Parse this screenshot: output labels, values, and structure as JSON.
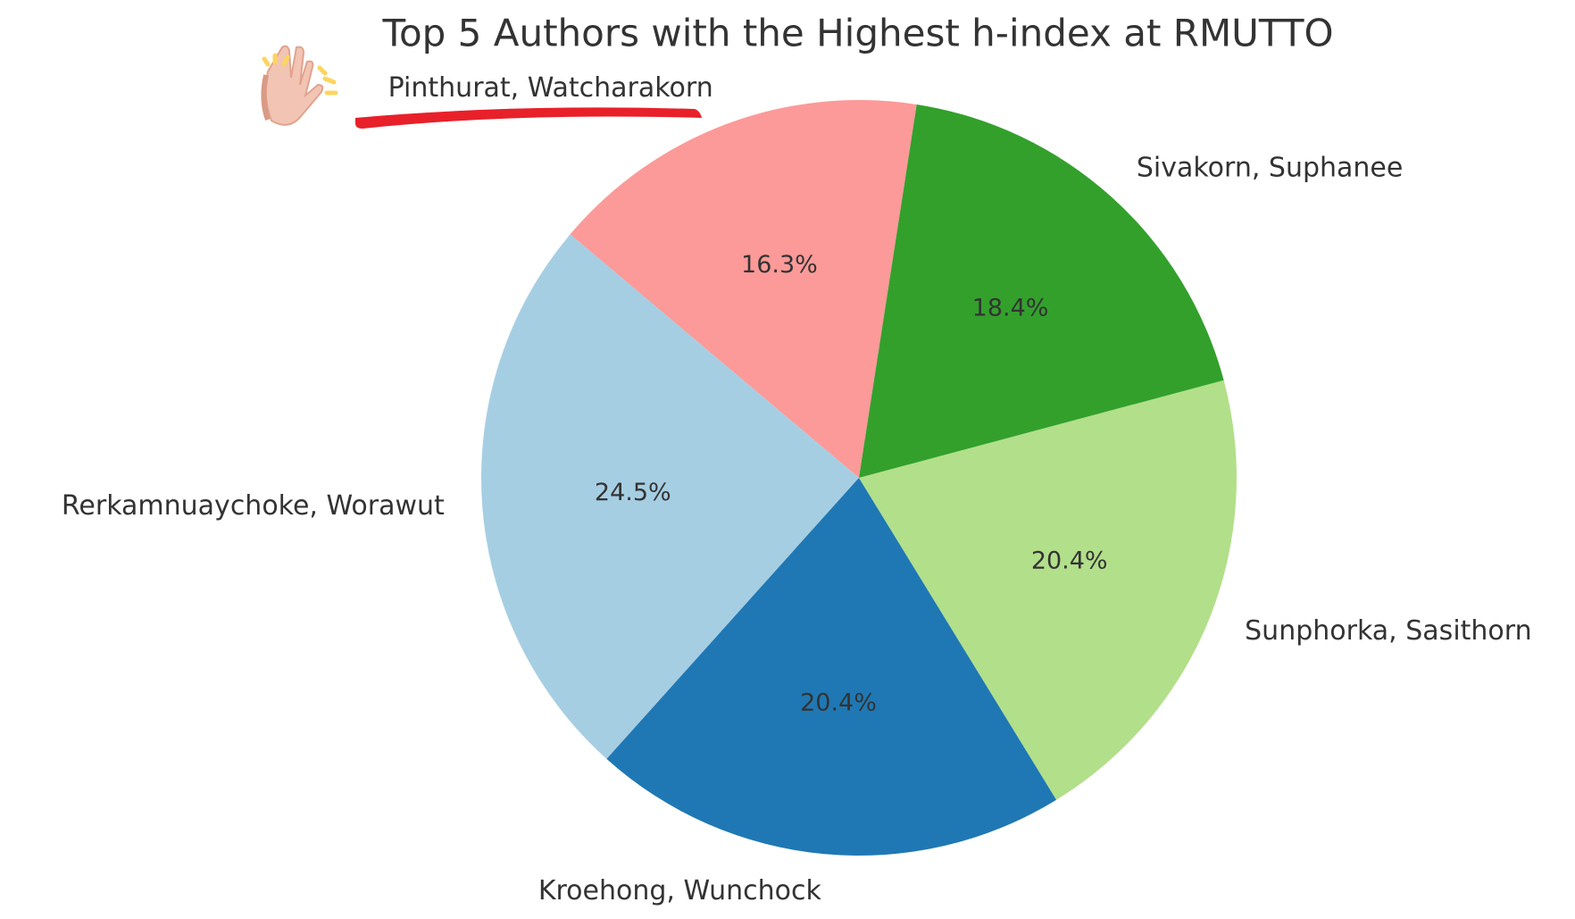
{
  "chart_data": {
    "type": "pie",
    "title": "Top 5 Authors with the Highest h-index at RMUTTO",
    "categories": [
      "Pinthurat, Watcharakorn",
      "Rerkamnuaychoke, Worawut",
      "Kroehong, Wunchock",
      "Sunphorka, Sasithorn",
      "Sivakorn, Suphanee"
    ],
    "values": [
      16.3,
      24.5,
      20.4,
      20.4,
      18.4
    ],
    "value_labels": [
      "16.3%",
      "24.5%",
      "20.4%",
      "20.4%",
      "18.4%"
    ],
    "colors": [
      "#fb9a99",
      "#a6cee3",
      "#1f78b4",
      "#b2df8a",
      "#33a02c"
    ]
  }
}
